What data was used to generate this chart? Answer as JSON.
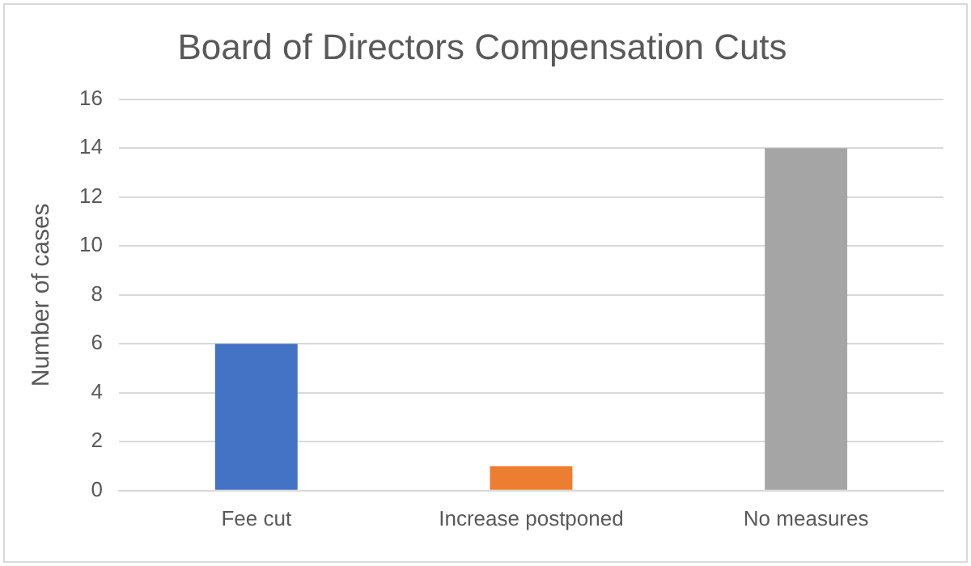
{
  "chart_data": {
    "type": "bar",
    "title": "Board of Directors Compensation Cuts",
    "ylabel": "Number of cases",
    "categories": [
      "Fee cut",
      "Increase postponed",
      "No measures"
    ],
    "values": [
      6,
      1,
      14
    ],
    "colors": [
      "#4472c4",
      "#ed7d31",
      "#a5a5a5"
    ],
    "ylim": [
      0,
      16
    ],
    "yticks": [
      0,
      2,
      4,
      6,
      8,
      10,
      12,
      14,
      16
    ],
    "grid": "y",
    "legend": false
  }
}
